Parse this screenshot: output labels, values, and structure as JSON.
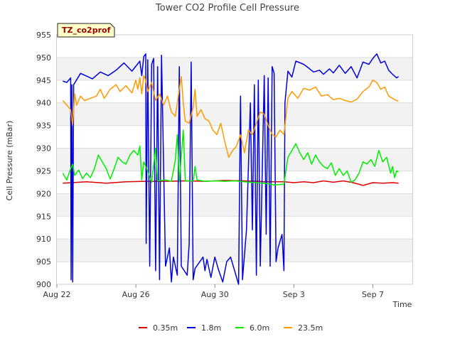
{
  "chart_data": {
    "type": "line",
    "title": "Tower CO2 Profile Cell Pressure",
    "site_badge": "TZ_co2prof",
    "xlabel": "Time",
    "ylabel": "Cell Pressure (mBar)",
    "x_unit": "days since Aug 22",
    "x_ticks": [
      {
        "x": 0,
        "label": "Aug 22"
      },
      {
        "x": 4,
        "label": "Aug 26"
      },
      {
        "x": 8,
        "label": "Aug 30"
      },
      {
        "x": 12,
        "label": "Sep 3"
      },
      {
        "x": 16,
        "label": "Sep 7"
      }
    ],
    "xlim": [
      0,
      18
    ],
    "ylim": [
      900,
      955
    ],
    "y_ticks": [
      900,
      905,
      910,
      915,
      920,
      925,
      930,
      935,
      940,
      945,
      950,
      955
    ],
    "grid": "horizontal bands",
    "legend_position": "bottom",
    "series": [
      {
        "name": "0.35m",
        "color": "#dd0000",
        "points": [
          [
            0.3,
            922.3
          ],
          [
            1.5,
            922.6
          ],
          [
            2.5,
            922.3
          ],
          [
            3.5,
            922.6
          ],
          [
            4.5,
            922.7
          ],
          [
            5.5,
            922.7
          ],
          [
            6.5,
            922.8
          ],
          [
            7.5,
            922.7
          ],
          [
            8.5,
            922.9
          ],
          [
            9.5,
            922.8
          ],
          [
            10.2,
            922.7
          ],
          [
            10.5,
            922.6
          ],
          [
            11.5,
            922.6
          ],
          [
            12.0,
            922.4
          ],
          [
            12.5,
            922.6
          ],
          [
            13.0,
            922.4
          ],
          [
            13.5,
            922.8
          ],
          [
            14.0,
            922.5
          ],
          [
            14.5,
            922.8
          ],
          [
            15.0,
            922.4
          ],
          [
            15.5,
            921.8
          ],
          [
            16.0,
            922.4
          ],
          [
            16.5,
            922.3
          ],
          [
            17.0,
            922.4
          ],
          [
            17.3,
            922.3
          ]
        ]
      },
      {
        "name": "1.8m",
        "color": "#0000dd",
        "points": [
          [
            0.3,
            944.8
          ],
          [
            0.5,
            944.5
          ],
          [
            0.7,
            945.5
          ],
          [
            0.72,
            901
          ],
          [
            0.76,
            944
          ],
          [
            0.8,
            900.5
          ],
          [
            0.85,
            944
          ],
          [
            1.2,
            946.5
          ],
          [
            1.8,
            945.3
          ],
          [
            2.2,
            946.8
          ],
          [
            2.6,
            946
          ],
          [
            3.0,
            947.2
          ],
          [
            3.4,
            948.8
          ],
          [
            3.8,
            947
          ],
          [
            4.2,
            949.2
          ],
          [
            4.3,
            946
          ],
          [
            4.4,
            950.2
          ],
          [
            4.5,
            950.8
          ],
          [
            4.52,
            909
          ],
          [
            4.6,
            949.5
          ],
          [
            4.7,
            904
          ],
          [
            4.8,
            948.5
          ],
          [
            4.9,
            949.8
          ],
          [
            5.0,
            903
          ],
          [
            5.1,
            948
          ],
          [
            5.2,
            901
          ],
          [
            5.3,
            950.5
          ],
          [
            5.5,
            904
          ],
          [
            5.7,
            908
          ],
          [
            5.8,
            900.5
          ],
          [
            5.9,
            906
          ],
          [
            6.1,
            902
          ],
          [
            6.2,
            948
          ],
          [
            6.3,
            904
          ],
          [
            6.6,
            902
          ],
          [
            6.7,
            909
          ],
          [
            6.8,
            949
          ],
          [
            6.9,
            901
          ],
          [
            7.0,
            903.5
          ],
          [
            7.4,
            906
          ],
          [
            7.5,
            903
          ],
          [
            7.6,
            905.5
          ],
          [
            7.8,
            901.5
          ],
          [
            8.0,
            906
          ],
          [
            8.2,
            903
          ],
          [
            8.4,
            900.5
          ],
          [
            8.6,
            905
          ],
          [
            8.8,
            906
          ],
          [
            9.0,
            903
          ],
          [
            9.2,
            900
          ],
          [
            9.3,
            941.5
          ],
          [
            9.4,
            901
          ],
          [
            9.6,
            912
          ],
          [
            9.8,
            940
          ],
          [
            9.9,
            912
          ],
          [
            10.0,
            944
          ],
          [
            10.1,
            902
          ],
          [
            10.2,
            945
          ],
          [
            10.3,
            904
          ],
          [
            10.5,
            946
          ],
          [
            10.6,
            911
          ],
          [
            10.7,
            945.5
          ],
          [
            10.8,
            904
          ],
          [
            10.9,
            948
          ],
          [
            11.0,
            946.5
          ],
          [
            11.1,
            905
          ],
          [
            11.2,
            908
          ],
          [
            11.4,
            911
          ],
          [
            11.5,
            903
          ],
          [
            11.55,
            940
          ],
          [
            11.7,
            947
          ],
          [
            11.9,
            945.7
          ],
          [
            12.1,
            949.2
          ],
          [
            12.5,
            948.5
          ],
          [
            12.8,
            947.5
          ],
          [
            13.0,
            946.8
          ],
          [
            13.3,
            947.2
          ],
          [
            13.5,
            946.3
          ],
          [
            13.8,
            947.5
          ],
          [
            14.0,
            946.6
          ],
          [
            14.3,
            948.3
          ],
          [
            14.6,
            946.5
          ],
          [
            14.9,
            948
          ],
          [
            15.2,
            945.5
          ],
          [
            15.5,
            949
          ],
          [
            15.8,
            948.5
          ],
          [
            16.0,
            949.8
          ],
          [
            16.2,
            950.8
          ],
          [
            16.4,
            948.8
          ],
          [
            16.6,
            949.2
          ],
          [
            16.8,
            947.2
          ],
          [
            17.0,
            946.3
          ],
          [
            17.2,
            945.5
          ],
          [
            17.3,
            945.8
          ]
        ]
      },
      {
        "name": "6.0m",
        "color": "#00ee00",
        "points": [
          [
            0.3,
            924.5
          ],
          [
            0.5,
            923
          ],
          [
            0.7,
            925.5
          ],
          [
            0.8,
            926.5
          ],
          [
            0.9,
            924
          ],
          [
            1.1,
            925.2
          ],
          [
            1.3,
            923.3
          ],
          [
            1.5,
            924.5
          ],
          [
            1.7,
            923.5
          ],
          [
            1.9,
            925.5
          ],
          [
            2.1,
            928.5
          ],
          [
            2.3,
            927
          ],
          [
            2.5,
            925.5
          ],
          [
            2.7,
            923.2
          ],
          [
            2.9,
            925.5
          ],
          [
            3.1,
            928
          ],
          [
            3.3,
            927
          ],
          [
            3.5,
            926.5
          ],
          [
            3.7,
            928.5
          ],
          [
            3.9,
            929.5
          ],
          [
            4.1,
            928.5
          ],
          [
            4.2,
            930.5
          ],
          [
            4.3,
            923
          ],
          [
            4.4,
            927
          ],
          [
            4.6,
            925
          ],
          [
            4.8,
            922.5
          ],
          [
            5.0,
            930
          ],
          [
            5.1,
            922.8
          ],
          [
            5.5,
            923
          ],
          [
            5.8,
            922.7
          ],
          [
            6.0,
            927.5
          ],
          [
            6.1,
            933
          ],
          [
            6.2,
            922.6
          ],
          [
            6.4,
            934
          ],
          [
            6.5,
            922.8
          ],
          [
            6.9,
            922.8
          ],
          [
            7.0,
            926
          ],
          [
            7.1,
            923
          ],
          [
            7.5,
            922.7
          ],
          [
            8.0,
            922.8
          ],
          [
            8.5,
            922.7
          ],
          [
            9.0,
            922.8
          ],
          [
            9.5,
            922.6
          ],
          [
            10.0,
            922.4
          ],
          [
            10.5,
            922.3
          ],
          [
            11.0,
            921.9
          ],
          [
            11.5,
            922.1
          ],
          [
            11.7,
            928
          ],
          [
            11.9,
            929.5
          ],
          [
            12.1,
            931
          ],
          [
            12.3,
            929
          ],
          [
            12.5,
            927.5
          ],
          [
            12.7,
            929
          ],
          [
            12.9,
            926.5
          ],
          [
            13.1,
            928.5
          ],
          [
            13.3,
            927
          ],
          [
            13.5,
            926
          ],
          [
            13.7,
            925.5
          ],
          [
            13.9,
            926.8
          ],
          [
            14.1,
            924
          ],
          [
            14.3,
            925.5
          ],
          [
            14.5,
            924
          ],
          [
            14.7,
            925
          ],
          [
            14.9,
            922.5
          ],
          [
            15.1,
            923
          ],
          [
            15.3,
            924.5
          ],
          [
            15.5,
            927
          ],
          [
            15.7,
            926.5
          ],
          [
            15.9,
            927.5
          ],
          [
            16.1,
            926
          ],
          [
            16.3,
            929.5
          ],
          [
            16.5,
            927
          ],
          [
            16.7,
            928
          ],
          [
            16.9,
            924.5
          ],
          [
            17.0,
            926
          ],
          [
            17.1,
            923.5
          ],
          [
            17.2,
            925
          ],
          [
            17.3,
            924.8
          ]
        ]
      },
      {
        "name": "23.5m",
        "color": "#ff9900",
        "points": [
          [
            0.3,
            940.5
          ],
          [
            0.5,
            939.5
          ],
          [
            0.7,
            938.5
          ],
          [
            0.8,
            935
          ],
          [
            0.9,
            942
          ],
          [
            1.0,
            939.5
          ],
          [
            1.2,
            941.5
          ],
          [
            1.4,
            940.5
          ],
          [
            1.7,
            941
          ],
          [
            2.0,
            941.5
          ],
          [
            2.2,
            943
          ],
          [
            2.4,
            941
          ],
          [
            2.7,
            943
          ],
          [
            3.0,
            944
          ],
          [
            3.2,
            942.5
          ],
          [
            3.5,
            943.8
          ],
          [
            3.8,
            942.2
          ],
          [
            4.0,
            945
          ],
          [
            4.1,
            943
          ],
          [
            4.2,
            945.5
          ],
          [
            4.3,
            942
          ],
          [
            4.4,
            946
          ],
          [
            4.5,
            945
          ],
          [
            4.6,
            942.5
          ],
          [
            4.8,
            944.5
          ],
          [
            5.0,
            940.5
          ],
          [
            5.2,
            942
          ],
          [
            5.4,
            939.5
          ],
          [
            5.6,
            941.5
          ],
          [
            5.8,
            938
          ],
          [
            6.0,
            937
          ],
          [
            6.2,
            943
          ],
          [
            6.3,
            945.8
          ],
          [
            6.4,
            940
          ],
          [
            6.5,
            936
          ],
          [
            6.7,
            935.5
          ],
          [
            6.9,
            939
          ],
          [
            7.0,
            943
          ],
          [
            7.1,
            937
          ],
          [
            7.3,
            938.5
          ],
          [
            7.5,
            936.5
          ],
          [
            7.7,
            936
          ],
          [
            7.9,
            934
          ],
          [
            8.1,
            933
          ],
          [
            8.3,
            935.5
          ],
          [
            8.5,
            931.5
          ],
          [
            8.7,
            928
          ],
          [
            8.9,
            929.5
          ],
          [
            9.1,
            930.5
          ],
          [
            9.3,
            933
          ],
          [
            9.5,
            929
          ],
          [
            9.7,
            934
          ],
          [
            9.9,
            933
          ],
          [
            10.1,
            935.5
          ],
          [
            10.3,
            938
          ],
          [
            10.5,
            937.5
          ],
          [
            10.7,
            935
          ],
          [
            10.9,
            933
          ],
          [
            11.1,
            932.5
          ],
          [
            11.3,
            934
          ],
          [
            11.5,
            933
          ],
          [
            11.7,
            941
          ],
          [
            11.9,
            942.5
          ],
          [
            12.2,
            941
          ],
          [
            12.5,
            943.2
          ],
          [
            12.8,
            942.8
          ],
          [
            13.1,
            943.5
          ],
          [
            13.4,
            941.5
          ],
          [
            13.7,
            941.8
          ],
          [
            14.0,
            940.7
          ],
          [
            14.3,
            941
          ],
          [
            14.6,
            940.5
          ],
          [
            14.9,
            940.2
          ],
          [
            15.2,
            940.8
          ],
          [
            15.5,
            942.5
          ],
          [
            15.8,
            943.5
          ],
          [
            16.0,
            945
          ],
          [
            16.2,
            944.5
          ],
          [
            16.4,
            943
          ],
          [
            16.6,
            943.5
          ],
          [
            16.8,
            941.5
          ],
          [
            17.0,
            941
          ],
          [
            17.2,
            940.5
          ],
          [
            17.3,
            940.4
          ]
        ]
      }
    ]
  }
}
